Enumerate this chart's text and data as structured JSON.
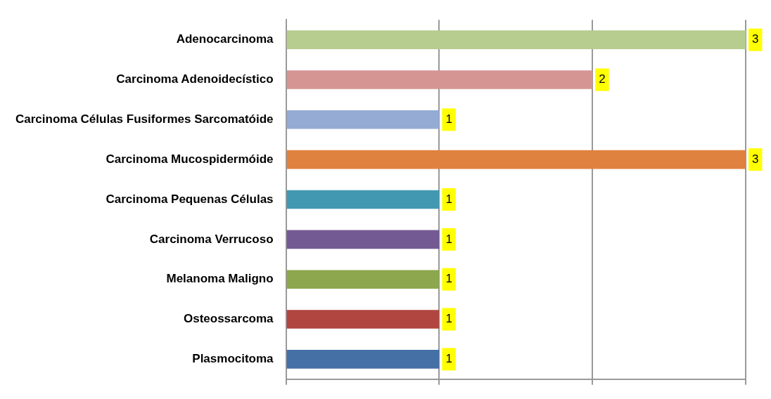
{
  "chart_data": {
    "type": "bar",
    "orientation": "horizontal",
    "categories": [
      "Adenocarcinoma",
      "Carcinoma Adenoidecístico",
      "Carcinoma Células Fusiformes Sarcomatóide",
      "Carcinoma Mucospidermóide",
      "Carcinoma Pequenas Células",
      "Carcinoma Verrucoso",
      "Melanoma Maligno",
      "Osteossarcoma",
      "Plasmocitoma"
    ],
    "values": [
      3,
      2,
      1,
      3,
      1,
      1,
      1,
      1,
      1
    ],
    "colors": [
      "#b7cc8f",
      "#d49593",
      "#95abd3",
      "#e0823f",
      "#4298b0",
      "#745a93",
      "#8ca74d",
      "#b1453f",
      "#4470a5"
    ],
    "xlim": [
      0,
      3
    ],
    "xticks": [
      {
        "value": 0,
        "label": null
      },
      {
        "value": 1,
        "label": null
      },
      {
        "value": 2,
        "label": null
      },
      {
        "value": 3,
        "label": null
      }
    ],
    "tick_labels": "y",
    "grid": "x",
    "data_labels": true,
    "legend": false
  }
}
